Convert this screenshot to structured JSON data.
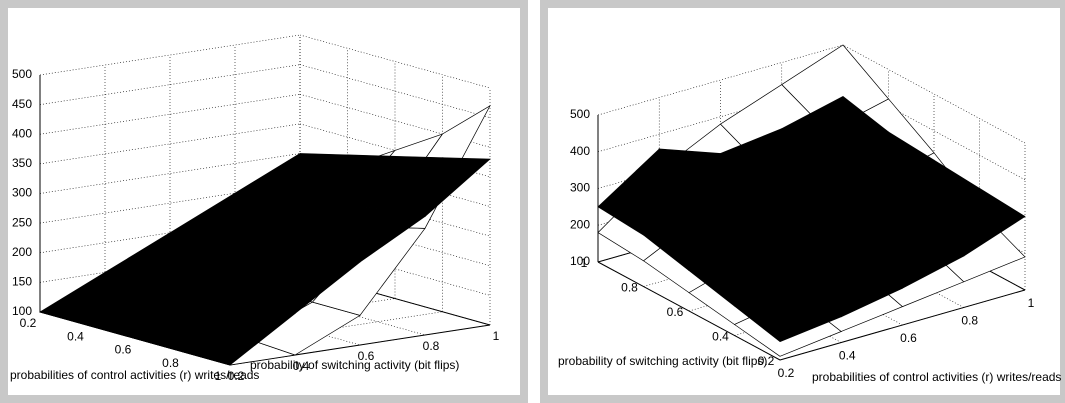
{
  "chart_data": [
    {
      "type": "surface",
      "xlabel": "probabilities of control activities (r) writes/reads",
      "ylabel": "probability of switching activity (bit flips)",
      "xlim": [
        0.2,
        1
      ],
      "ylim": [
        0.2,
        1
      ],
      "zlim": [
        100,
        500
      ],
      "xticks": [
        0.2,
        0.4,
        0.6,
        0.8,
        1
      ],
      "yticks": [
        0.2,
        0.4,
        0.6,
        0.8,
        1
      ],
      "zticks": [
        100,
        150,
        200,
        250,
        300,
        350,
        400,
        450,
        500
      ],
      "x": [
        0.2,
        0.4,
        0.6,
        0.8,
        1
      ],
      "y": [
        0.2,
        0.4,
        0.6,
        0.8,
        1
      ],
      "series": [
        {
          "color": "#ffffff",
          "values": [
            [
              100,
              130,
              170,
              210,
              250
            ],
            [
              100,
              120,
              160,
              220,
              300
            ],
            [
              100,
              110,
              150,
              240,
              350
            ],
            [
              100,
              105,
              150,
              260,
              400
            ],
            [
              100,
              100,
              150,
              280,
              470
            ]
          ]
        },
        {
          "color": "#000000",
          "values": [
            [
              100,
              150,
              200,
              250,
              300
            ],
            [
              100,
              155,
              210,
              265,
              320
            ],
            [
              100,
              160,
              220,
              280,
              340
            ],
            [
              100,
              165,
              230,
              290,
              360
            ],
            [
              100,
              170,
              240,
              300,
              380
            ]
          ]
        }
      ]
    },
    {
      "type": "surface",
      "xlabel": "probabilities of control activities (r) writes/reads",
      "ylabel": "probability of switching activity (bit flips)",
      "xlim": [
        0.2,
        1
      ],
      "ylim": [
        0.2,
        1
      ],
      "zlim": [
        100,
        500
      ],
      "xticks": [
        0.2,
        0.4,
        0.6,
        0.8,
        1
      ],
      "yticks": [
        0.2,
        0.4,
        0.6,
        0.8,
        1
      ],
      "zticks": [
        100,
        200,
        300,
        400,
        500
      ],
      "x": [
        0.2,
        0.4,
        0.6,
        0.8,
        1
      ],
      "y": [
        0.2,
        0.4,
        0.6,
        0.8,
        1
      ],
      "series": [
        {
          "color": "#ffffff",
          "values": [
            [
              110,
              130,
              150,
              170,
              180
            ],
            [
              130,
              160,
              200,
              250,
              300
            ],
            [
              150,
              190,
              250,
              320,
              380
            ],
            [
              170,
              220,
              300,
              380,
              440
            ],
            [
              190,
              250,
              340,
              420,
              500
            ]
          ]
        },
        {
          "color": "#000000",
          "values": [
            [
              150,
              180,
              210,
              240,
              250
            ],
            [
              170,
              210,
              260,
              300,
              360
            ],
            [
              200,
              240,
              270,
              280,
              300
            ],
            [
              240,
              260,
              280,
              300,
              320
            ],
            [
              300,
              310,
              320,
              330,
              360
            ]
          ]
        }
      ]
    }
  ]
}
